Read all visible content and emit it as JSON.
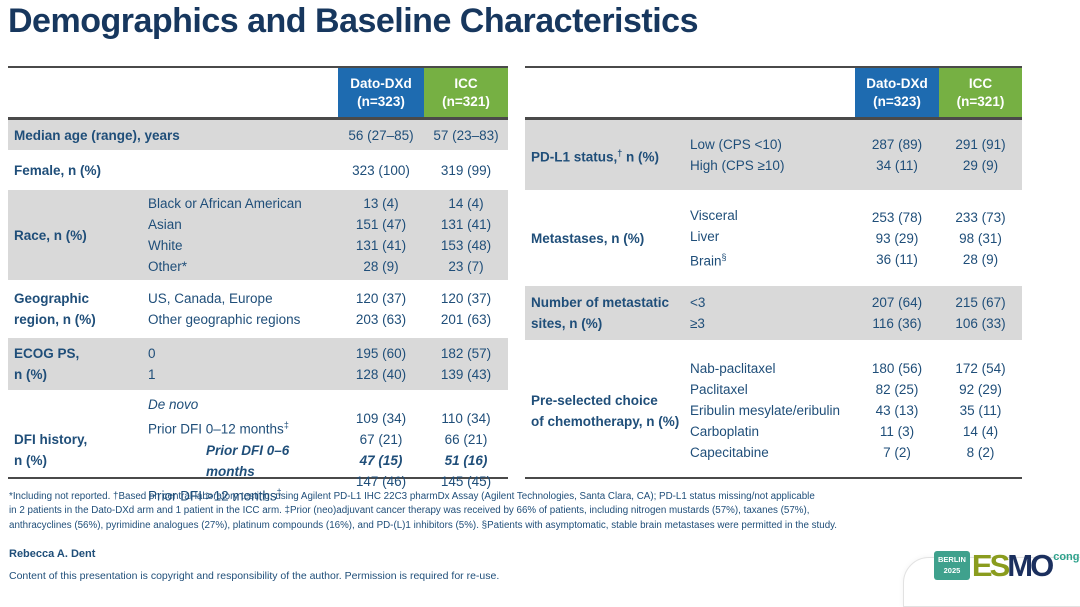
{
  "slide": {
    "title": "Demographics and Baseline Characteristics",
    "author": "Rebecca A. Dent",
    "copyright": "Content of this presentation is copyright and responsibility of the author. Permission is required for re-use."
  },
  "colors": {
    "title_navy": "#17375E",
    "text_navy": "#1F4E79",
    "dato_blue": "#1E6BB0",
    "icc_green": "#76B043",
    "row_gray": "#D9D9D9",
    "logo_teal": "#3FA18D",
    "logo_olive": "#8A9C1E",
    "logo_navy": "#1B2F5E"
  },
  "arms": {
    "dato": {
      "name": "Dato-DXd",
      "n": "(n=323)"
    },
    "icc": {
      "name": "ICC",
      "n": "(n=321)"
    }
  },
  "left_table": {
    "rows": [
      {
        "label": "Median age (range), years",
        "subrows": [
          {
            "sub": "",
            "dato": "56 (27–85)",
            "icc": "57 (23–83)"
          }
        ]
      },
      {
        "label": "Female, n (%)",
        "subrows": [
          {
            "sub": "",
            "dato": "323 (100)",
            "icc": "319 (99)"
          }
        ]
      },
      {
        "label": "Race, n (%)",
        "subrows": [
          {
            "sub": "Black or African American",
            "dato": "13 (4)",
            "icc": "14 (4)"
          },
          {
            "sub": "Asian",
            "dato": "151 (47)",
            "icc": "131 (41)"
          },
          {
            "sub": "White",
            "dato": "131 (41)",
            "icc": "153 (48)"
          },
          {
            "sub": "Other*",
            "dato": "28 (9)",
            "icc": "23 (7)"
          }
        ]
      },
      {
        "label": "Geographic\nregion, n (%)",
        "subrows": [
          {
            "sub": "US, Canada, Europe",
            "dato": "120 (37)",
            "icc": "120 (37)"
          },
          {
            "sub": "Other geographic regions",
            "dato": "203 (63)",
            "icc": "201 (63)"
          }
        ]
      },
      {
        "label": "ECOG PS,\nn (%)",
        "subrows": [
          {
            "sub": "0",
            "dato": "195 (60)",
            "icc": "182 (57)"
          },
          {
            "sub": "1",
            "dato": "128 (40)",
            "icc": "139 (43)"
          }
        ]
      },
      {
        "label": "DFI history,\nn (%)",
        "subrows": [
          {
            "sub": "De novo",
            "sup": "",
            "dato": "109 (34)",
            "icc": "110 (34)"
          },
          {
            "sub": "Prior DFI 0–12 months",
            "sup": "‡",
            "dato": "67 (21)",
            "icc": "66 (21)"
          },
          {
            "sub": "Prior DFI 0–6 months",
            "sup": "",
            "dato": "47 (15)",
            "icc": "51 (16)"
          },
          {
            "sub": "Prior DFI >12 months",
            "sup": "‡",
            "dato": "147 (46)",
            "icc": "145 (45)"
          }
        ]
      }
    ]
  },
  "right_table": {
    "rows": [
      {
        "label": "PD-L1 status,",
        "label_sup": "†",
        "label_post": " n (%)",
        "subrows": [
          {
            "sub": "Low (CPS <10)",
            "dato": "287 (89)",
            "icc": "291 (91)"
          },
          {
            "sub": "High (CPS ≥10)",
            "dato": "34 (11)",
            "icc": "29 (9)"
          }
        ]
      },
      {
        "label": "Metastases, n (%)",
        "subrows": [
          {
            "sub": "Visceral",
            "sup": "",
            "dato": "253 (78)",
            "icc": "233 (73)"
          },
          {
            "sub": "Liver",
            "sup": "",
            "dato": "93 (29)",
            "icc": "98 (31)"
          },
          {
            "sub": "Brain",
            "sup": "§",
            "dato": "36 (11)",
            "icc": "28 (9)"
          }
        ]
      },
      {
        "label": "Number of metastatic\nsites, n (%)",
        "subrows": [
          {
            "sub": "<3",
            "dato": "207 (64)",
            "icc": "215 (67)"
          },
          {
            "sub": "≥3",
            "dato": "116 (36)",
            "icc": "106 (33)"
          }
        ]
      },
      {
        "label": "Pre-selected choice\nof chemotherapy, n (%)",
        "subrows": [
          {
            "sub": "Nab-paclitaxel",
            "dato": "180 (56)",
            "icc": "172 (54)"
          },
          {
            "sub": "Paclitaxel",
            "dato": "82 (25)",
            "icc": "92 (29)"
          },
          {
            "sub": "Eribulin mesylate/eribulin",
            "dato": "43 (13)",
            "icc": "35 (11)"
          },
          {
            "sub": "Carboplatin",
            "dato": "11 (3)",
            "icc": "14 (4)"
          },
          {
            "sub": "Capecitabine",
            "dato": "7 (2)",
            "icc": "8 (2)"
          }
        ]
      }
    ]
  },
  "footnotes": {
    "line1": "*Including not reported. †Based on central laboratory testing, using Agilent PD-L1 IHC 22C3 pharmDx Assay (Agilent Technologies, Santa Clara, CA); PD-L1 status missing/not applicable",
    "line2": "in 2 patients in the Dato-DXd arm and 1 patient in the ICC arm. ‡Prior (neo)adjuvant cancer therapy was received by 66% of patients, including nitrogen mustards (57%), taxanes (57%),",
    "line3": "anthracyclines (56%), pyrimidine analogues (27%), platinum compounds (16%), and PD-(L)1 inhibitors (5%). §Patients with asymptomatic, stable brain metastases were permitted in the study."
  },
  "logo": {
    "berlin": "BERLIN",
    "year": "2025",
    "esmo_green": "ES",
    "esmo_navy": "MO",
    "congress": "congress"
  }
}
